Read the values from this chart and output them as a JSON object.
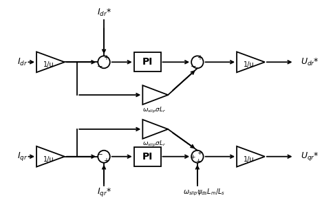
{
  "bg_color": "#ffffff",
  "line_color": "#000000",
  "figsize": [
    4.68,
    3.2
  ],
  "dpi": 100,
  "labels": {
    "Idr": "$I_{dr}$",
    "Iqr": "$I_{qr}$",
    "Idr_ref": "$I_{dr}$*",
    "Iqr_ref": "$I_{qr}$*",
    "Udr": "$U_{dr}$*",
    "Uqr": "$U_{qr}$*",
    "PI": "PI",
    "inv_u": "1/u",
    "omega_top": "$\\omega_{slip}\\sigma L_r$",
    "omega_bot": "$\\omega_{slip}\\sigma L_r$",
    "omega_flux": "$\\omega_{slip}\\psi_{ds}L_m/L_s$"
  }
}
